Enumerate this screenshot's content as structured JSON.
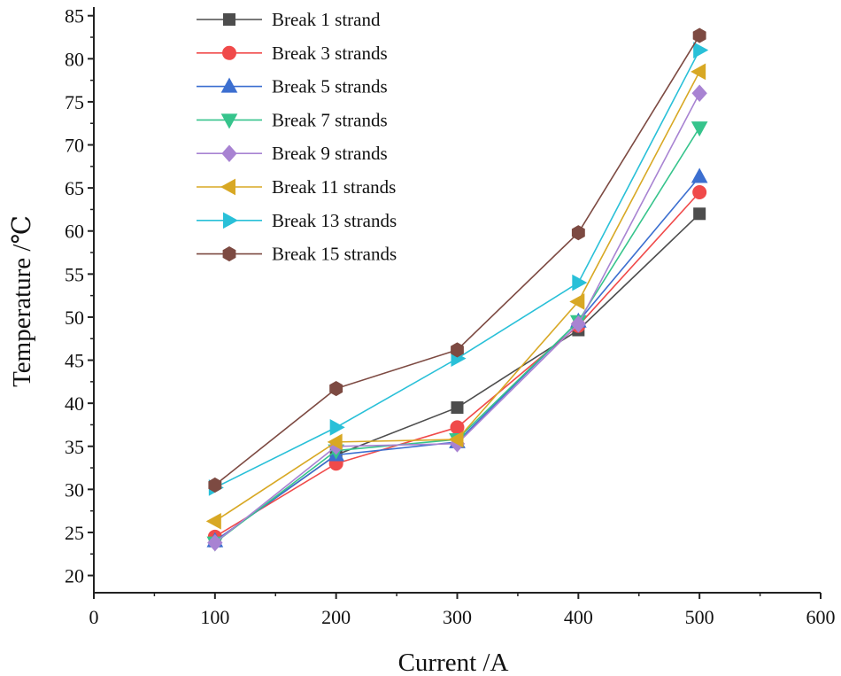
{
  "chart_data": {
    "type": "line",
    "title": "",
    "xlabel": "Current /A",
    "ylabel": "Temperature /℃",
    "xlim": [
      0,
      600
    ],
    "ylim": [
      18,
      86
    ],
    "xticks": [
      0,
      100,
      200,
      300,
      400,
      500,
      600
    ],
    "yticks": [
      20,
      25,
      30,
      35,
      40,
      45,
      50,
      55,
      60,
      65,
      70,
      75,
      80,
      85
    ],
    "grid": false,
    "legend_position": "top-left",
    "x": [
      100,
      200,
      300,
      400,
      500
    ],
    "series": [
      {
        "name": "Break 1 strand",
        "color": "#4d4d4d",
        "marker": "square",
        "values": [
          24.0,
          34.0,
          39.5,
          48.5,
          62.0
        ]
      },
      {
        "name": "Break 3 strands",
        "color": "#f04a4a",
        "marker": "circle",
        "values": [
          24.5,
          33.0,
          37.2,
          49.0,
          64.5
        ]
      },
      {
        "name": "Break 5 strands",
        "color": "#3c6fd0",
        "marker": "triangle-up",
        "values": [
          24.0,
          34.0,
          35.5,
          49.5,
          66.3
        ]
      },
      {
        "name": "Break 7 strands",
        "color": "#36c48c",
        "marker": "triangle-down",
        "values": [
          23.8,
          34.5,
          35.8,
          49.5,
          72.0
        ]
      },
      {
        "name": "Break 9 strands",
        "color": "#a883d2",
        "marker": "diamond",
        "values": [
          23.8,
          35.0,
          35.3,
          49.2,
          76.0
        ]
      },
      {
        "name": "Break 11 strands",
        "color": "#d8a824",
        "marker": "triangle-left",
        "values": [
          26.3,
          35.5,
          35.8,
          51.8,
          78.5
        ]
      },
      {
        "name": "Break 13 strands",
        "color": "#29c0d8",
        "marker": "triangle-right",
        "values": [
          30.2,
          37.2,
          45.2,
          54.0,
          81.0
        ]
      },
      {
        "name": "Break 15 strands",
        "color": "#7d4a42",
        "marker": "hexagon",
        "values": [
          30.5,
          41.7,
          46.2,
          59.8,
          82.7
        ]
      }
    ]
  }
}
